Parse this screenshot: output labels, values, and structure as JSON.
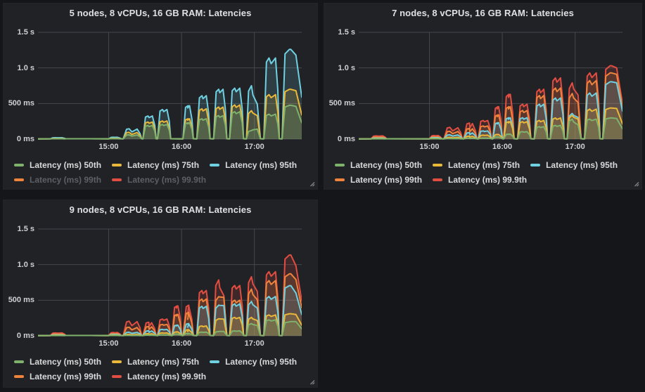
{
  "dashboard": {
    "description": "Grafana-style dark dashboard with three latency time-series panels",
    "theme": {
      "page_bg": "#151619",
      "panel_bg": "#212226",
      "text": "#d8d9da",
      "dim_text": "#5c5f66",
      "grid": "#45474c"
    }
  },
  "chart_data": [
    {
      "type": "area",
      "title": "5 nodes, 8 vCPUs, 16 GB RAM: Latencies",
      "x_range": [
        14.03,
        17.65
      ],
      "x_ticks": [
        {
          "v": 15,
          "label": "15:00"
        },
        {
          "v": 16,
          "label": "16:00"
        },
        {
          "v": 17,
          "label": "17:00"
        }
      ],
      "y_ticks": [
        {
          "v": 0,
          "label": "0 ms"
        },
        {
          "v": 500,
          "label": "500 ms"
        },
        {
          "v": 1000,
          "label": "1.0 s"
        },
        {
          "v": 1500,
          "label": "1.5 s"
        }
      ],
      "ylim_ms": [
        0,
        1500
      ],
      "legend_position": "bottom",
      "grid": true,
      "series": [
        {
          "name": "Latency (ms) 50th",
          "key": "p50",
          "color": "#7EB26D",
          "visible": true
        },
        {
          "name": "Latency (ms) 75th",
          "key": "p75",
          "color": "#EAB839",
          "visible": true
        },
        {
          "name": "Latency (ms) 95th",
          "key": "p95",
          "color": "#6ED0E0",
          "visible": true
        },
        {
          "name": "Latency (ms) 99th",
          "key": "p99",
          "color": "#EF843C",
          "visible": false
        },
        {
          "name": "Latency (ms) 99.9th",
          "key": "p999",
          "color": "#E24D42",
          "visible": false
        }
      ],
      "baseline_ms": 4,
      "bursts": [
        {
          "t": [
            14.2,
            14.4
          ],
          "ms": {
            "p50": 5,
            "p75": 9,
            "p95": 20
          }
        },
        {
          "t": [
            15.0,
            15.16
          ],
          "ms": {
            "p50": 6,
            "p75": 11,
            "p95": 26
          }
        },
        {
          "t": [
            15.2,
            15.44
          ],
          "shape": "double",
          "ms": {
            "p50": 60,
            "p75": 95,
            "p95": 145
          }
        },
        {
          "t": [
            15.47,
            15.64
          ],
          "ms": {
            "p50": 190,
            "p75": 240,
            "p95": 325
          }
        },
        {
          "t": [
            15.67,
            15.84
          ],
          "ms": {
            "p50": 205,
            "p75": 255,
            "p95": 415
          }
        },
        {
          "t": [
            16.02,
            16.15
          ],
          "ms": {
            "p50": 230,
            "p75": 285,
            "p95": 470
          }
        },
        {
          "t": [
            16.21,
            16.38
          ],
          "ms": {
            "p50": 285,
            "p75": 425,
            "p95": 610
          }
        },
        {
          "t": [
            16.44,
            16.61
          ],
          "ms": {
            "p50": 330,
            "p75": 450,
            "p95": 700
          }
        },
        {
          "t": [
            16.66,
            16.84
          ],
          "ms": {
            "p50": 385,
            "p75": 480,
            "p95": 715
          }
        },
        {
          "t": [
            16.89,
            17.07
          ],
          "shape": "decline",
          "ms": {
            "p50": 120,
            "p75": 400,
            "p95": 750
          },
          "ms_end": {
            "p50": 140,
            "p75": 330,
            "p95": 490
          }
        },
        {
          "t": [
            17.13,
            17.33
          ],
          "ms": {
            "p50": 350,
            "p75": 625,
            "p95": 1140
          }
        },
        {
          "t": [
            17.38,
            17.62
          ],
          "shape": "edge",
          "ms": {
            "p50": 475,
            "p75": 700,
            "p95": 1260
          },
          "ms_end": {
            "p50": 460,
            "p75": 680,
            "p95": 1180
          }
        }
      ]
    },
    {
      "type": "area",
      "title": "7 nodes, 8 vCPUs, 16 GB RAM: Latencies",
      "x_range": [
        14.03,
        17.65
      ],
      "x_ticks": [
        {
          "v": 15,
          "label": "15:00"
        },
        {
          "v": 16,
          "label": "16:00"
        },
        {
          "v": 17,
          "label": "17:00"
        }
      ],
      "y_ticks": [
        {
          "v": 0,
          "label": "0 ms"
        },
        {
          "v": 500,
          "label": "500 ms"
        },
        {
          "v": 1000,
          "label": "1.0 s"
        },
        {
          "v": 1500,
          "label": "1.5 s"
        }
      ],
      "ylim_ms": [
        0,
        1500
      ],
      "legend_position": "bottom",
      "grid": true,
      "series": [
        {
          "name": "Latency (ms) 50th",
          "key": "p50",
          "color": "#7EB26D",
          "visible": true
        },
        {
          "name": "Latency (ms) 75th",
          "key": "p75",
          "color": "#EAB839",
          "visible": true
        },
        {
          "name": "Latency (ms) 95th",
          "key": "p95",
          "color": "#6ED0E0",
          "visible": true
        },
        {
          "name": "Latency (ms) 99th",
          "key": "p99",
          "color": "#EF843C",
          "visible": true
        },
        {
          "name": "Latency (ms) 99.9th",
          "key": "p999",
          "color": "#E24D42",
          "visible": true
        }
      ],
      "baseline_ms": 4,
      "bursts": [
        {
          "t": [
            14.2,
            14.4
          ],
          "ms": {
            "p50": 4,
            "p75": 8,
            "p95": 15,
            "p99": 28,
            "p999": 45
          }
        },
        {
          "t": [
            15.0,
            15.16
          ],
          "ms": {
            "p50": 5,
            "p75": 10,
            "p95": 20,
            "p99": 32,
            "p999": 50
          }
        },
        {
          "t": [
            15.2,
            15.44
          ],
          "shape": "double",
          "ms": {
            "p50": 8,
            "p75": 25,
            "p95": 60,
            "p99": 110,
            "p999": 165
          }
        },
        {
          "t": [
            15.47,
            15.64
          ],
          "shape": "double",
          "ms": {
            "p50": 12,
            "p75": 40,
            "p95": 90,
            "p99": 150,
            "p999": 225
          }
        },
        {
          "t": [
            15.67,
            15.84
          ],
          "ms": {
            "p50": 15,
            "p75": 55,
            "p95": 115,
            "p99": 185,
            "p999": 262
          }
        },
        {
          "t": [
            15.87,
            15.99
          ],
          "ms": {
            "p50": 30,
            "p75": 65,
            "p95": 230,
            "p99": 340,
            "p999": 455
          }
        },
        {
          "t": [
            16.02,
            16.15
          ],
          "ms": {
            "p50": 70,
            "p75": 245,
            "p95": 300,
            "p99": 455,
            "p999": 630
          }
        },
        {
          "t": [
            16.21,
            16.38
          ],
          "ms": {
            "p50": 105,
            "p75": 245,
            "p95": 300,
            "p99": 402,
            "p999": 490
          }
        },
        {
          "t": [
            16.44,
            16.61
          ],
          "ms": {
            "p50": 175,
            "p75": 262,
            "p95": 490,
            "p99": 612,
            "p999": 700
          }
        },
        {
          "t": [
            16.66,
            16.84
          ],
          "ms": {
            "p50": 192,
            "p75": 297,
            "p95": 577,
            "p99": 717,
            "p999": 860
          }
        },
        {
          "t": [
            16.89,
            17.07
          ],
          "shape": "decline",
          "ms": {
            "p50": 280,
            "p75": 332,
            "p95": 360,
            "p99": 640,
            "p999": 790
          },
          "ms_end": {
            "p50": 200,
            "p75": 280,
            "p95": 305,
            "p99": 515,
            "p999": 620
          }
        },
        {
          "t": [
            17.13,
            17.33
          ],
          "ms": {
            "p50": 280,
            "p75": 420,
            "p95": 647,
            "p99": 822,
            "p999": 930
          }
        },
        {
          "t": [
            17.38,
            17.62
          ],
          "shape": "edge",
          "ms": {
            "p50": 297,
            "p75": 437,
            "p95": 805,
            "p99": 930,
            "p999": 1030
          },
          "ms_end": {
            "p50": 290,
            "p75": 430,
            "p95": 790,
            "p99": 910,
            "p999": 1000
          }
        }
      ]
    },
    {
      "type": "area",
      "title": "9 nodes, 8 vCPUs, 16 GB RAM: Latencies",
      "x_range": [
        14.03,
        17.65
      ],
      "x_ticks": [
        {
          "v": 15,
          "label": "15:00"
        },
        {
          "v": 16,
          "label": "16:00"
        },
        {
          "v": 17,
          "label": "17:00"
        }
      ],
      "y_ticks": [
        {
          "v": 0,
          "label": "0 ms"
        },
        {
          "v": 500,
          "label": "500 ms"
        },
        {
          "v": 1000,
          "label": "1.0 s"
        },
        {
          "v": 1500,
          "label": "1.5 s"
        }
      ],
      "ylim_ms": [
        0,
        1500
      ],
      "legend_position": "bottom",
      "grid": true,
      "series": [
        {
          "name": "Latency (ms) 50th",
          "key": "p50",
          "color": "#7EB26D",
          "visible": true
        },
        {
          "name": "Latency (ms) 75th",
          "key": "p75",
          "color": "#EAB839",
          "visible": true
        },
        {
          "name": "Latency (ms) 95th",
          "key": "p95",
          "color": "#6ED0E0",
          "visible": true
        },
        {
          "name": "Latency (ms) 99th",
          "key": "p99",
          "color": "#EF843C",
          "visible": true
        },
        {
          "name": "Latency (ms) 99.9th",
          "key": "p999",
          "color": "#E24D42",
          "visible": true
        }
      ],
      "baseline_ms": 4,
      "bursts": [
        {
          "t": [
            14.2,
            14.4
          ],
          "ms": {
            "p50": 4,
            "p75": 8,
            "p95": 14,
            "p99": 25,
            "p999": 40
          }
        },
        {
          "t": [
            15.0,
            15.16
          ],
          "ms": {
            "p50": 5,
            "p75": 9,
            "p95": 18,
            "p99": 30,
            "p999": 46
          }
        },
        {
          "t": [
            15.2,
            15.44
          ],
          "shape": "double",
          "ms": {
            "p50": 6,
            "p75": 20,
            "p95": 50,
            "p99": 120,
            "p999": 205
          }
        },
        {
          "t": [
            15.47,
            15.64
          ],
          "shape": "double",
          "ms": {
            "p50": 10,
            "p75": 30,
            "p95": 70,
            "p99": 130,
            "p999": 190
          }
        },
        {
          "t": [
            15.67,
            15.84
          ],
          "ms": {
            "p50": 12,
            "p75": 40,
            "p95": 90,
            "p99": 160,
            "p999": 235
          }
        },
        {
          "t": [
            15.87,
            15.99
          ],
          "ms": {
            "p50": 25,
            "p75": 55,
            "p95": 150,
            "p99": 300,
            "p999": 420
          }
        },
        {
          "t": [
            16.02,
            16.15
          ],
          "shape": "double",
          "ms": {
            "p50": 34,
            "p75": 86,
            "p95": 172,
            "p99": 330,
            "p999": 430
          }
        },
        {
          "t": [
            16.21,
            16.38
          ],
          "ms": {
            "p50": 52,
            "p75": 138,
            "p95": 413,
            "p99": 516,
            "p999": 637
          }
        },
        {
          "t": [
            16.44,
            16.61
          ],
          "shape": "decline",
          "ms": {
            "p50": 60,
            "p75": 240,
            "p95": 430,
            "p99": 550,
            "p999": 785
          },
          "ms_end": {
            "p50": 62,
            "p75": 235,
            "p95": 425,
            "p99": 540,
            "p999": 565
          }
        },
        {
          "t": [
            16.66,
            16.84
          ],
          "ms": {
            "p50": 69,
            "p75": 259,
            "p95": 448,
            "p99": 500,
            "p999": 707
          }
        },
        {
          "t": [
            16.89,
            17.07
          ],
          "shape": "decline",
          "ms": {
            "p50": 172,
            "p75": 259,
            "p95": 483,
            "p99": 655,
            "p999": 830
          },
          "ms_end": {
            "p50": 145,
            "p75": 215,
            "p95": 390,
            "p99": 505,
            "p999": 625
          }
        },
        {
          "t": [
            17.13,
            17.33
          ],
          "ms": {
            "p50": 224,
            "p75": 293,
            "p95": 552,
            "p99": 776,
            "p999": 900
          }
        },
        {
          "t": [
            17.38,
            17.62
          ],
          "shape": "edge",
          "ms": {
            "p50": 195,
            "p75": 310,
            "p95": 705,
            "p99": 870,
            "p999": 1135
          },
          "ms_end": {
            "p50": 200,
            "p75": 300,
            "p95": 600,
            "p99": 790,
            "p999": 985
          }
        }
      ]
    }
  ]
}
